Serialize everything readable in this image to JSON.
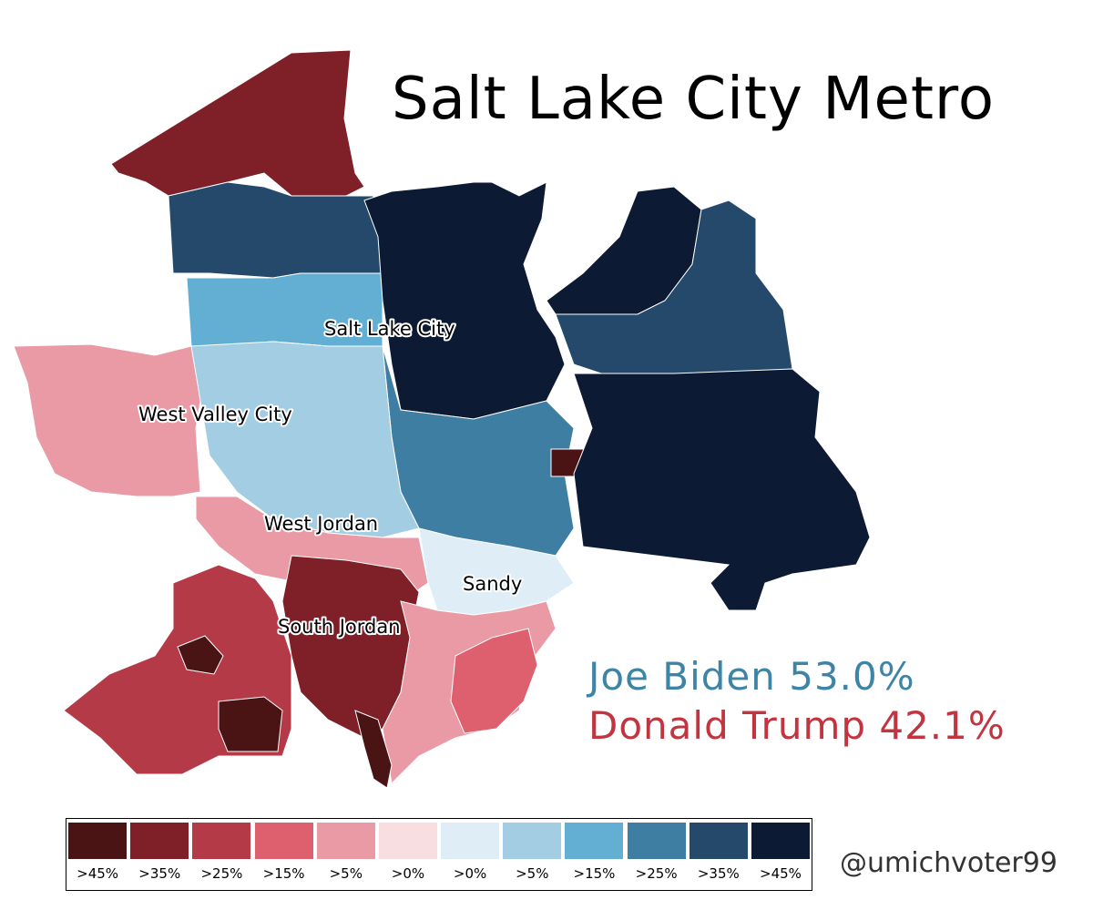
{
  "title": "Salt Lake City Metro",
  "results": {
    "biden": "Joe Biden 53.0%",
    "trump": "Donald Trump 42.1%",
    "biden_color": "#3d84a6",
    "trump_color": "#c23440"
  },
  "cities": {
    "salt_lake_city": "Salt Lake City",
    "west_valley_city": "West Valley City",
    "west_jordan": "West Jordan",
    "sandy": "Sandy",
    "south_jordan": "South Jordan"
  },
  "legend": [
    {
      "label": ">45%",
      "color": "#4a1414"
    },
    {
      "label": ">35%",
      "color": "#7f1f28"
    },
    {
      "label": ">25%",
      "color": "#b53a48"
    },
    {
      "label": ">15%",
      "color": "#de5f6e"
    },
    {
      "label": ">5%",
      "color": "#e99aa4"
    },
    {
      "label": ">0%",
      "color": "#f8dde1"
    },
    {
      "label": ">0%",
      "color": "#deedf6"
    },
    {
      "label": ">5%",
      "color": "#a3cde2"
    },
    {
      "label": ">15%",
      "color": "#62afd3"
    },
    {
      "label": ">25%",
      "color": "#3f7ea3"
    },
    {
      "label": ">35%",
      "color": "#24496b"
    },
    {
      "label": ">45%",
      "color": "#0c1a33"
    }
  ],
  "credit": "@umichvoter99"
}
